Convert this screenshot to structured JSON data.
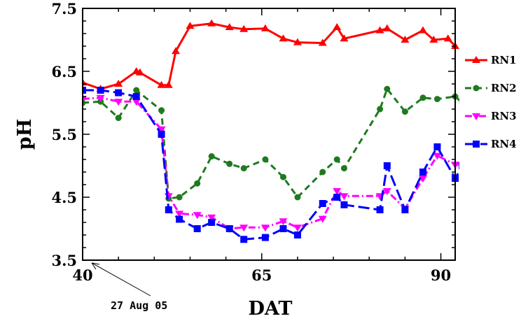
{
  "chart_data": {
    "type": "line",
    "xlabel": "DAT",
    "ylabel": "pH",
    "xlim": [
      40,
      92
    ],
    "ylim": [
      3.5,
      7.5
    ],
    "xticks": [
      "40",
      "65",
      "90"
    ],
    "yticks": [
      "3.5",
      "4.5",
      "5.5",
      "6.5",
      "7.5"
    ],
    "grid": false,
    "legend_position": "right",
    "annotation": "27 Aug 05",
    "series": [
      {
        "name": "RN1",
        "color": "#ff0000",
        "marker": "triangle-up",
        "dash": "solid",
        "points": [
          [
            40,
            6.32
          ],
          [
            42.5,
            6.22
          ],
          [
            45,
            6.3
          ],
          [
            47.5,
            6.5
          ],
          [
            48,
            6.48
          ],
          [
            51,
            6.28
          ],
          [
            52,
            6.28
          ],
          [
            53,
            6.82
          ],
          [
            55,
            7.22
          ],
          [
            58,
            7.26
          ],
          [
            60.5,
            7.2
          ],
          [
            62.5,
            7.17
          ],
          [
            65.5,
            7.18
          ],
          [
            68,
            7.02
          ],
          [
            70,
            6.96
          ],
          [
            73.5,
            6.95
          ],
          [
            75.5,
            7.2
          ],
          [
            76.5,
            7.02
          ],
          [
            81.5,
            7.15
          ],
          [
            82.5,
            7.18
          ],
          [
            85,
            7.0
          ],
          [
            87.5,
            7.15
          ],
          [
            89,
            7.0
          ],
          [
            91,
            7.02
          ],
          [
            92,
            6.9
          ]
        ]
      },
      {
        "name": "RN2",
        "color": "#1f7a1f",
        "marker": "circle",
        "dash": "dashed",
        "points": [
          [
            40,
            6.0
          ],
          [
            42.5,
            6.02
          ],
          [
            45,
            5.76
          ],
          [
            47.5,
            6.2
          ],
          [
            51,
            5.88
          ],
          [
            52,
            4.48
          ],
          [
            53.5,
            4.5
          ],
          [
            56,
            4.72
          ],
          [
            58,
            5.15
          ],
          [
            60.5,
            5.03
          ],
          [
            62.5,
            4.96
          ],
          [
            65.5,
            5.1
          ],
          [
            68,
            4.82
          ],
          [
            70,
            4.5
          ],
          [
            73.5,
            4.9
          ],
          [
            75.5,
            5.1
          ],
          [
            76.5,
            4.96
          ],
          [
            81.5,
            5.9
          ],
          [
            82.5,
            6.22
          ],
          [
            85,
            5.86
          ],
          [
            87.5,
            6.08
          ],
          [
            89.5,
            6.06
          ],
          [
            92,
            6.1
          ],
          [
            93,
            6.0
          ]
        ]
      },
      {
        "name": "RN3",
        "color": "#ff00ff",
        "marker": "triangle-down",
        "dash": "dashdot",
        "points": [
          [
            40,
            6.06
          ],
          [
            42.5,
            6.08
          ],
          [
            45,
            6.02
          ],
          [
            47.5,
            6.02
          ],
          [
            51,
            5.58
          ],
          [
            52,
            4.52
          ],
          [
            53.5,
            4.24
          ],
          [
            56,
            4.22
          ],
          [
            58,
            4.18
          ],
          [
            60.5,
            4.0
          ],
          [
            62.5,
            4.02
          ],
          [
            65.5,
            4.02
          ],
          [
            68,
            4.12
          ],
          [
            70,
            4.02
          ],
          [
            73.5,
            4.16
          ],
          [
            75.5,
            4.6
          ],
          [
            76.5,
            4.52
          ],
          [
            81.5,
            4.52
          ],
          [
            82.5,
            4.6
          ],
          [
            85,
            4.32
          ],
          [
            87.5,
            4.8
          ],
          [
            89.5,
            5.16
          ],
          [
            92,
            5.02
          ],
          [
            93,
            5.0
          ]
        ]
      },
      {
        "name": "RN4",
        "color": "#0000ff",
        "marker": "square",
        "dash": "longdash",
        "points": [
          [
            40,
            6.2
          ],
          [
            42.5,
            6.2
          ],
          [
            45,
            6.16
          ],
          [
            47.5,
            6.1
          ],
          [
            51,
            5.5
          ],
          [
            52,
            4.3
          ],
          [
            53.5,
            4.15
          ],
          [
            56,
            4.0
          ],
          [
            58,
            4.1
          ],
          [
            60.5,
            4.0
          ],
          [
            62.5,
            3.83
          ],
          [
            65.5,
            3.86
          ],
          [
            68,
            4.0
          ],
          [
            70,
            3.9
          ],
          [
            73.5,
            4.4
          ],
          [
            75.5,
            4.5
          ],
          [
            76.5,
            4.38
          ],
          [
            81.5,
            4.3
          ],
          [
            82.5,
            5.0
          ],
          [
            85,
            4.3
          ],
          [
            87.5,
            4.9
          ],
          [
            89.5,
            5.3
          ],
          [
            92,
            4.8
          ],
          [
            93,
            5.0
          ]
        ]
      }
    ]
  }
}
